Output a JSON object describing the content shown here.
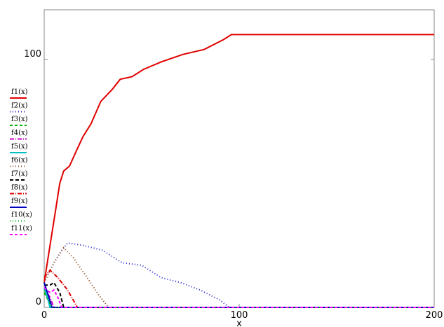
{
  "chart_data": {
    "type": "line",
    "xlabel": "x",
    "xlim": [
      0,
      200
    ],
    "ylim": [
      0,
      120
    ],
    "xticks": [
      0,
      100,
      200
    ],
    "yticks": [
      0,
      100
    ],
    "series": [
      {
        "name": "f1(x)",
        "color": "#e00000",
        "dash": "",
        "x": [
          0,
          3,
          6,
          8,
          10,
          13,
          17,
          20,
          24,
          29,
          35,
          39,
          45,
          51,
          60,
          71,
          82,
          92,
          96,
          200
        ],
        "values": [
          10,
          25,
          40,
          50,
          55,
          57,
          64,
          69,
          74,
          83,
          88,
          92,
          93,
          96,
          99,
          102,
          104,
          108,
          110,
          110
        ]
      },
      {
        "name": "f2(x)",
        "color": "#2020d0",
        "dash": "1,3",
        "x": [
          0,
          5,
          9,
          12,
          20,
          30,
          40,
          50,
          60,
          70,
          80,
          90,
          95,
          200
        ],
        "values": [
          10,
          18,
          23,
          26,
          25,
          23,
          18,
          17,
          12,
          10,
          7,
          3,
          0,
          0
        ]
      },
      {
        "name": "f3(x)",
        "color": "#00b000",
        "dash": "4,3",
        "x": [
          0,
          2,
          4,
          200
        ],
        "values": [
          6,
          3,
          0,
          0
        ]
      },
      {
        "name": "f4(x)",
        "color": "#d000d0",
        "dash": "6,2,1,2",
        "x": [
          0,
          3,
          5,
          200
        ],
        "values": [
          8,
          4,
          0,
          0
        ]
      },
      {
        "name": "f5(x)",
        "color": "#00c0c0",
        "dash": "",
        "x": [
          0,
          2,
          3,
          200
        ],
        "values": [
          8,
          3,
          0,
          0
        ]
      },
      {
        "name": "f6(x)",
        "color": "#8b4513",
        "dash": "1,3",
        "x": [
          0,
          5,
          10,
          15,
          22,
          28,
          33,
          200
        ],
        "values": [
          10,
          18,
          24,
          20,
          12,
          5,
          0,
          0
        ]
      },
      {
        "name": "f7(x)",
        "color": "#000000",
        "dash": "5,3",
        "x": [
          0,
          3,
          5,
          8,
          10,
          200
        ],
        "values": [
          9,
          9,
          10,
          6,
          0,
          0
        ]
      },
      {
        "name": "f8(x)",
        "color": "#e00000",
        "dash": "6,2,1,2",
        "x": [
          0,
          3,
          7,
          12,
          17,
          200
        ],
        "values": [
          12,
          15,
          12,
          7,
          0,
          0
        ]
      },
      {
        "name": "f9(x)",
        "color": "#0000c0",
        "dash": "",
        "x": [
          0,
          2,
          4,
          200
        ],
        "values": [
          10,
          5,
          0,
          0
        ]
      },
      {
        "name": "f10(x)",
        "color": "#00b000",
        "dash": "1,3",
        "x": [
          0,
          2,
          4,
          200
        ],
        "values": [
          7,
          3,
          0,
          0
        ]
      },
      {
        "name": "f11(x)",
        "color": "#ff00ff",
        "dash": "4,3",
        "x": [
          0,
          3,
          5,
          7,
          9,
          200
        ],
        "values": [
          8,
          6,
          7,
          4,
          0,
          0
        ]
      }
    ]
  }
}
